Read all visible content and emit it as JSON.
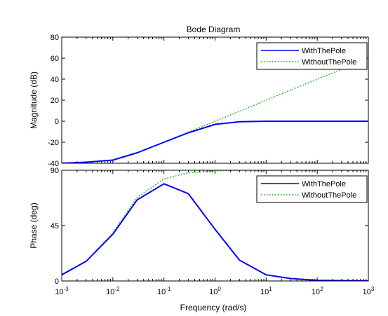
{
  "chart_data": [
    {
      "type": "line",
      "title": "Bode Diagram",
      "xlabel": "Frequency  (rad/s)",
      "ylabel": "Magnitude (dB)",
      "x_scale": "log",
      "xlim": [
        0.001,
        1000
      ],
      "ylim": [
        -40,
        80
      ],
      "yticks": [
        -40,
        -20,
        0,
        20,
        40,
        60,
        80
      ],
      "legend_position": "top-right",
      "x": [
        0.001,
        0.003,
        0.01,
        0.03,
        0.1,
        0.3,
        1,
        3,
        10,
        100,
        1000
      ],
      "series": [
        {
          "name": "WithThePole",
          "color": "#0000ff",
          "line_style": "solid",
          "values": [
            -40,
            -39,
            -37,
            -30,
            -20,
            -11,
            -3,
            -0.5,
            0,
            0,
            0
          ]
        },
        {
          "name": "WithoutThePole",
          "color": "#00aa00",
          "line_style": "dotted",
          "values": [
            -40,
            -39,
            -37,
            -30,
            -20,
            -10.5,
            0,
            9.5,
            20,
            40,
            60
          ]
        }
      ]
    },
    {
      "type": "line",
      "xlabel": "Frequency  (rad/s)",
      "ylabel": "Phase (deg)",
      "x_scale": "log",
      "xlim": [
        0.001,
        1000
      ],
      "ylim": [
        0,
        90
      ],
      "yticks": [
        0,
        45,
        90
      ],
      "xticks": [
        "10-3",
        "10-2",
        "10-1",
        "100",
        "101",
        "102",
        "103"
      ],
      "legend_position": "top-right",
      "x": [
        0.001,
        0.003,
        0.01,
        0.03,
        0.1,
        0.3,
        1,
        3,
        10,
        30,
        100,
        1000
      ],
      "series": [
        {
          "name": "WithThePole",
          "color": "#0000ff",
          "line_style": "solid",
          "values": [
            5,
            16,
            38,
            66,
            79,
            71,
            42,
            17,
            5,
            2,
            0.5,
            0
          ]
        },
        {
          "name": "WithoutThePole",
          "color": "#00aa00",
          "line_style": "dotted",
          "values": [
            5,
            16,
            39,
            68,
            83,
            88,
            89.5,
            90,
            90,
            90,
            90,
            90
          ]
        }
      ]
    }
  ]
}
